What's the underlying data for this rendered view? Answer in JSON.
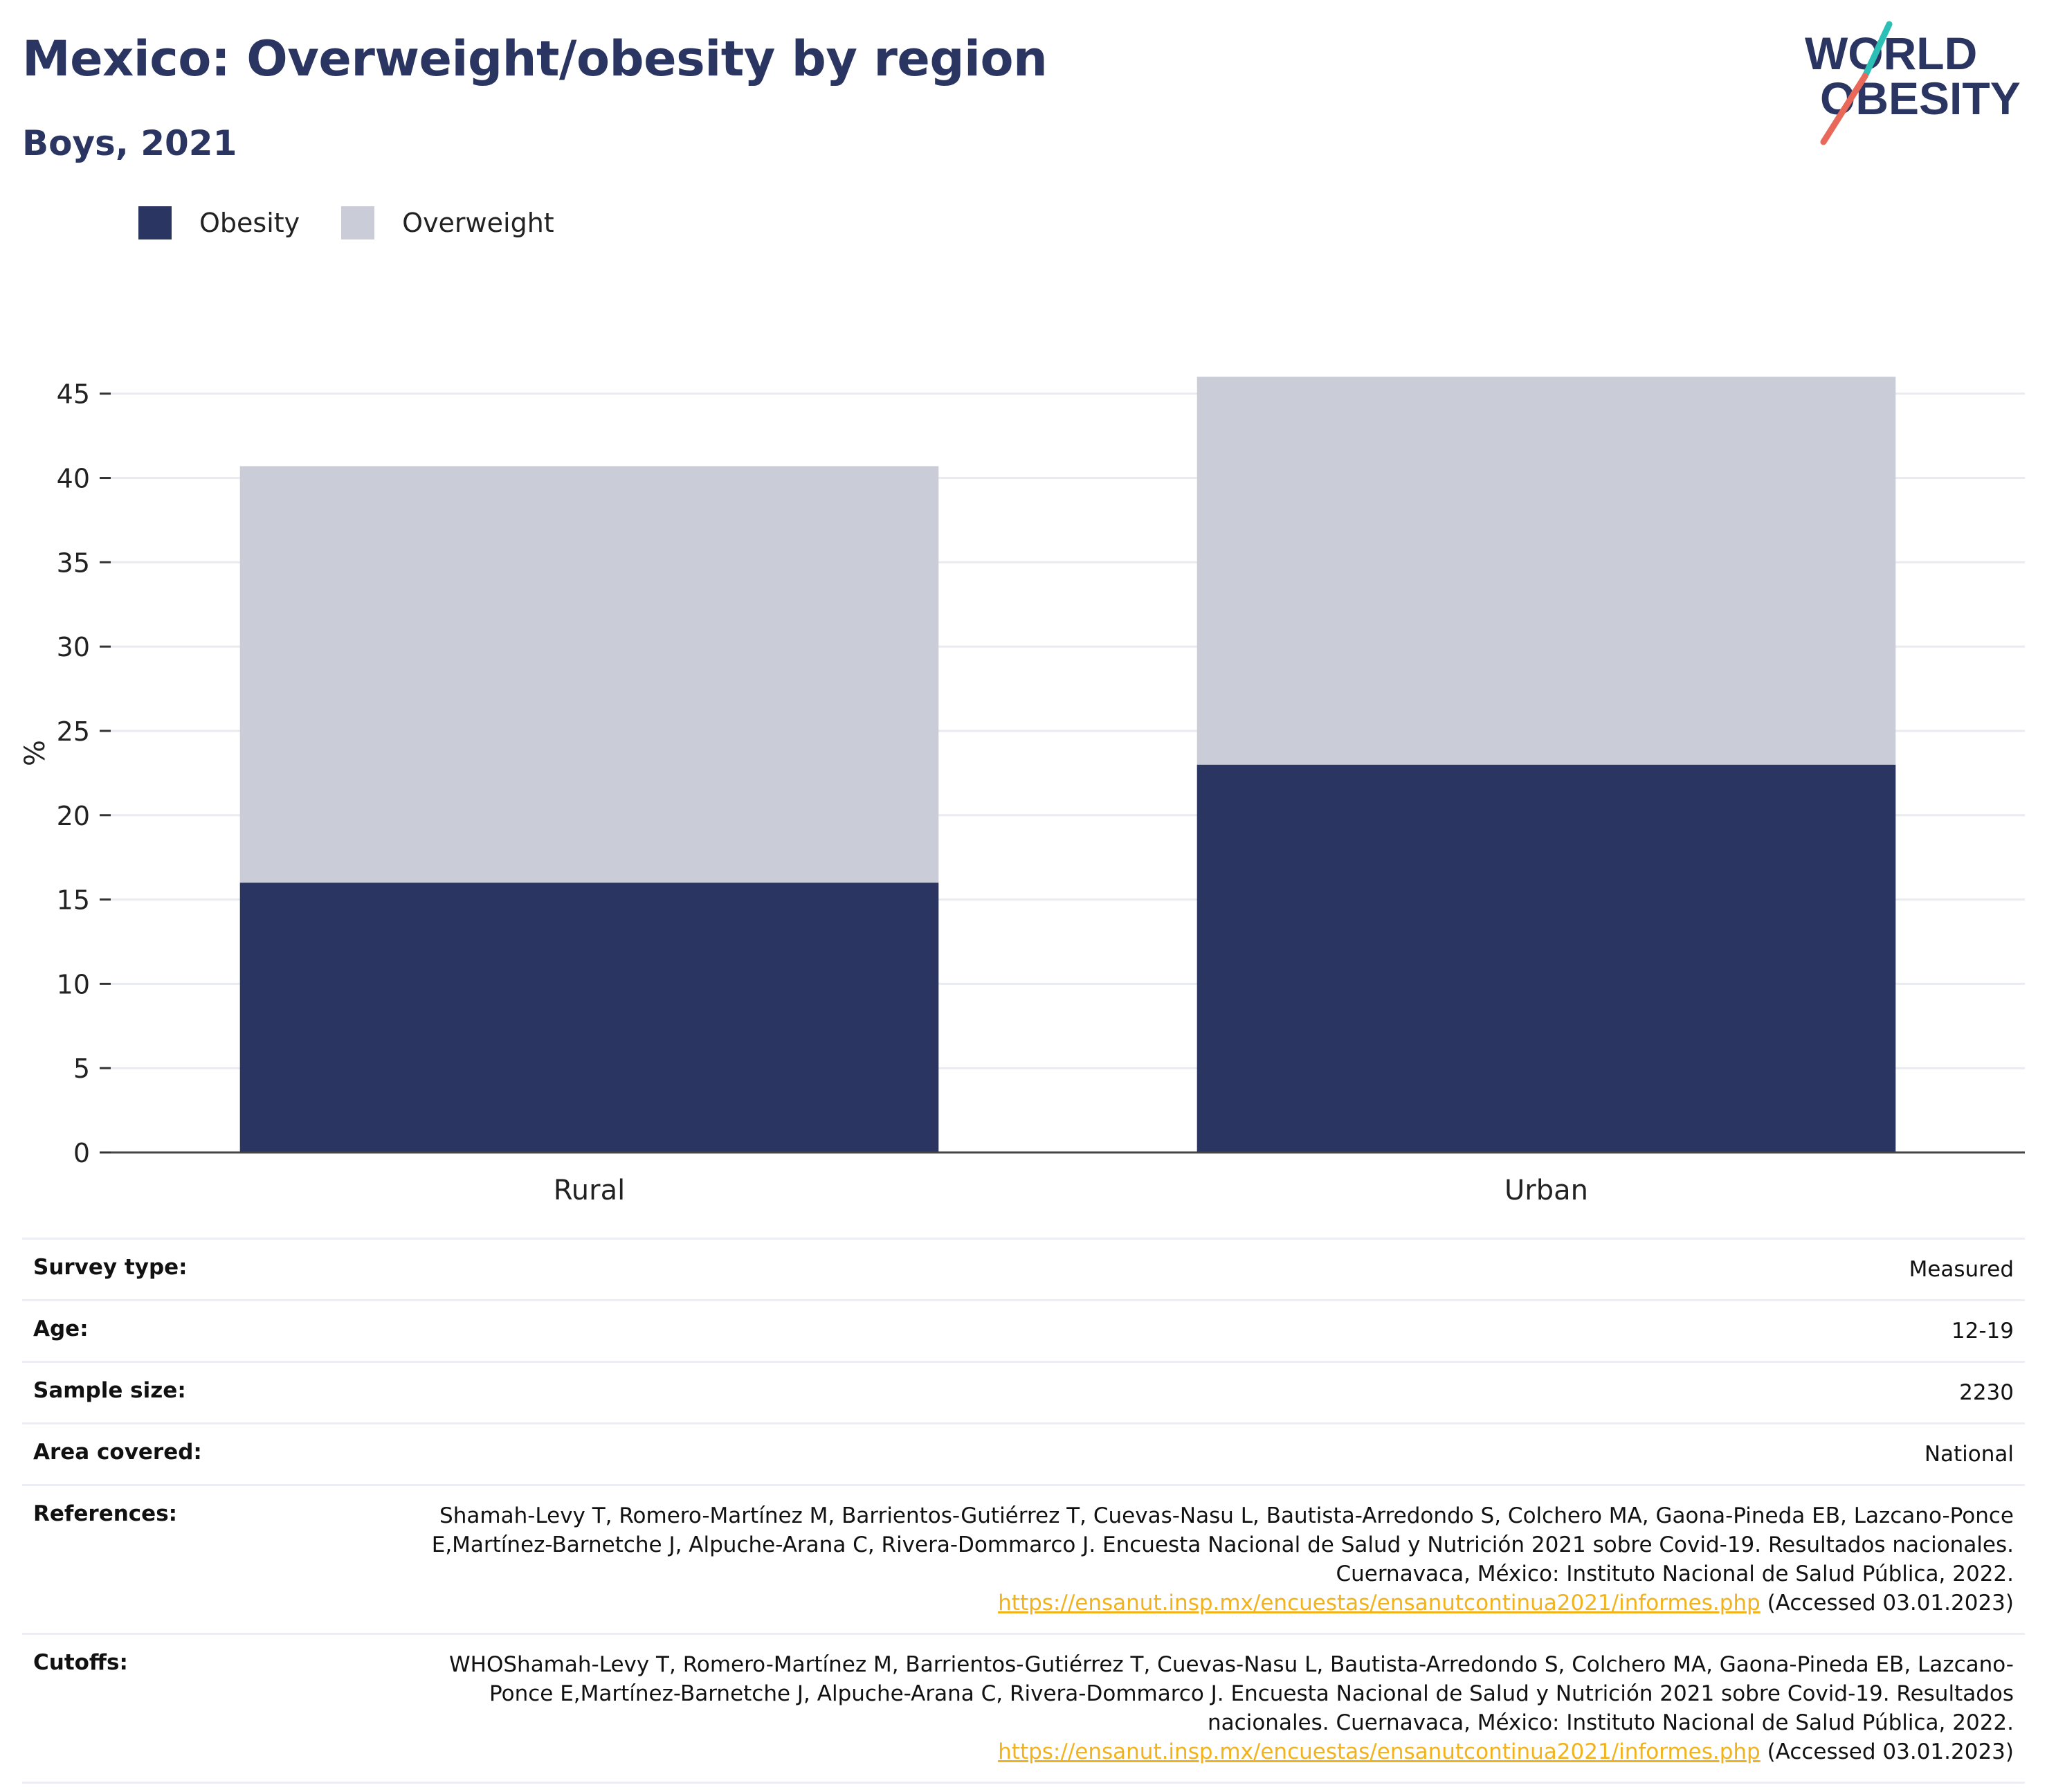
{
  "title": "Mexico: Overweight/obesity by region",
  "subtitle": "Boys, 2021",
  "logo": {
    "line1": "WORLD",
    "line2": "OBESITY"
  },
  "colors": {
    "obesity": "#2a3561",
    "overweight": "#cacdd8",
    "title": "#2a3561",
    "link": "#f2b21b",
    "logo_teal": "#2bbfb5",
    "logo_coral": "#e8685a"
  },
  "chart_data": {
    "type": "bar",
    "stacked": true,
    "categories": [
      "Rural",
      "Urban"
    ],
    "series": [
      {
        "name": "Obesity",
        "values": [
          16.0,
          23.0
        ]
      },
      {
        "name": "Overweight",
        "values": [
          24.7,
          23.0
        ]
      }
    ],
    "ylabel": "%",
    "xlabel": "",
    "ylim": [
      0,
      47
    ],
    "yticks": [
      0,
      5,
      10,
      15,
      20,
      25,
      30,
      35,
      40,
      45
    ],
    "grid": true,
    "legend_position": "top-left"
  },
  "info": {
    "rows": [
      {
        "label": "Survey type:",
        "value": "Measured"
      },
      {
        "label": "Age:",
        "value": "12-19"
      },
      {
        "label": "Sample size:",
        "value": "2230"
      },
      {
        "label": "Area covered:",
        "value": "National"
      }
    ],
    "references": {
      "label": "References:",
      "text": "Shamah-Levy T, Romero-Martínez M, Barrientos-Gutiérrez T, Cuevas-Nasu L, Bautista-Arredondo S, Colchero MA, Gaona-Pineda EB, Lazcano-Ponce E,Martínez-Barnetche J, Alpuche-Arana C, Rivera-Dommarco J. Encuesta Nacional de Salud y Nutrición 2021 sobre Covid-19. Resultados nacionales. Cuernavaca, México: Instituto Nacional de Salud Pública, 2022.",
      "link": "https://ensanut.insp.mx/encuestas/ensanutcontinua2021/informes.php",
      "accessed": " (Accessed 03.01.2023)"
    },
    "cutoffs": {
      "label": "Cutoffs:",
      "text": "WHOShamah-Levy T, Romero-Martínez M, Barrientos-Gutiérrez T, Cuevas-Nasu L, Bautista-Arredondo S, Colchero MA, Gaona-Pineda EB, Lazcano-Ponce E,Martínez-Barnetche J, Alpuche-Arana C, Rivera-Dommarco J. Encuesta Nacional de Salud y Nutrición 2021 sobre Covid-19. Resultados nacionales. Cuernavaca, México: Instituto Nacional de Salud Pública, 2022.",
      "link": "https://ensanut.insp.mx/encuestas/ensanutcontinua2021/informes.php",
      "accessed": " (Accessed 03.01.2023)"
    }
  }
}
